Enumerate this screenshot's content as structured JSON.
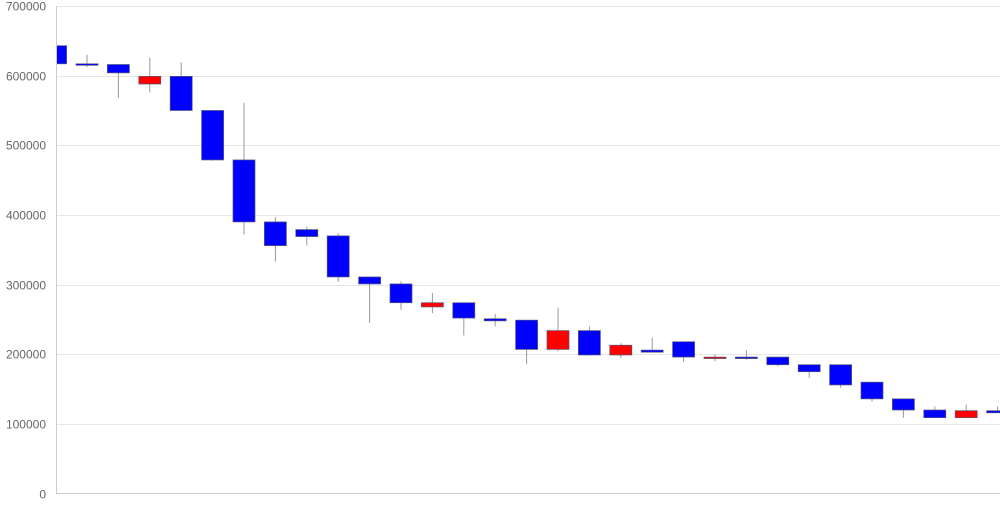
{
  "chart_data": {
    "type": "candlestick",
    "title": "",
    "xlabel": "",
    "ylabel": "",
    "ylim": [
      0,
      700000
    ],
    "yticks": [
      0,
      100000,
      200000,
      300000,
      400000,
      500000,
      600000,
      700000
    ],
    "ytick_labels": [
      "0",
      "100000",
      "200000",
      "300000",
      "400000",
      "500000",
      "600000",
      "700000"
    ],
    "grid": true,
    "colors": {
      "down": "#0000ff",
      "up": "#ff0000",
      "wick": "#999999",
      "grid": "#e6e6e6",
      "axis": "#cccccc"
    },
    "candles": [
      {
        "open": 643000,
        "close": 617000,
        "high": 643000,
        "low": 604000
      },
      {
        "open": 617000,
        "close": 615000,
        "high": 630000,
        "low": 612000
      },
      {
        "open": 616000,
        "close": 604000,
        "high": 616000,
        "low": 568000
      },
      {
        "open": 588000,
        "close": 599000,
        "high": 626000,
        "low": 576000
      },
      {
        "open": 599000,
        "close": 550000,
        "high": 619000,
        "low": 549000
      },
      {
        "open": 550000,
        "close": 479000,
        "high": 550000,
        "low": 478000
      },
      {
        "open": 479000,
        "close": 390000,
        "high": 561000,
        "low": 372000
      },
      {
        "open": 390000,
        "close": 356000,
        "high": 397000,
        "low": 333000
      },
      {
        "open": 379000,
        "close": 369000,
        "high": 383000,
        "low": 356000
      },
      {
        "open": 370000,
        "close": 311000,
        "high": 374000,
        "low": 304000
      },
      {
        "open": 311000,
        "close": 301000,
        "high": 311000,
        "low": 245000
      },
      {
        "open": 301000,
        "close": 274000,
        "high": 305000,
        "low": 264000
      },
      {
        "open": 268000,
        "close": 274000,
        "high": 288000,
        "low": 259000
      },
      {
        "open": 274000,
        "close": 252000,
        "high": 274000,
        "low": 227000
      },
      {
        "open": 251000,
        "close": 248000,
        "high": 258000,
        "low": 240000
      },
      {
        "open": 249000,
        "close": 207000,
        "high": 249000,
        "low": 186000
      },
      {
        "open": 207000,
        "close": 234000,
        "high": 267000,
        "low": 204000
      },
      {
        "open": 234000,
        "close": 199000,
        "high": 240000,
        "low": 198000
      },
      {
        "open": 199000,
        "close": 213000,
        "high": 216000,
        "low": 195000
      },
      {
        "open": 206000,
        "close": 203000,
        "high": 224000,
        "low": 203000
      },
      {
        "open": 218000,
        "close": 196000,
        "high": 218000,
        "low": 189000
      },
      {
        "open": 195000,
        "close": 196000,
        "high": 200000,
        "low": 190000
      },
      {
        "open": 196000,
        "close": 195000,
        "high": 206000,
        "low": 192000
      },
      {
        "open": 196000,
        "close": 185000,
        "high": 196000,
        "low": 183000
      },
      {
        "open": 185000,
        "close": 175000,
        "high": 185000,
        "low": 166000
      },
      {
        "open": 185000,
        "close": 156000,
        "high": 185000,
        "low": 152000
      },
      {
        "open": 160000,
        "close": 136000,
        "high": 160000,
        "low": 132000
      },
      {
        "open": 136000,
        "close": 120000,
        "high": 136000,
        "low": 109000
      },
      {
        "open": 120000,
        "close": 109000,
        "high": 125000,
        "low": 109000
      },
      {
        "open": 109000,
        "close": 119000,
        "high": 128000,
        "low": 109000
      },
      {
        "open": 119000,
        "close": 116000,
        "high": 125000,
        "low": 116000
      }
    ]
  }
}
